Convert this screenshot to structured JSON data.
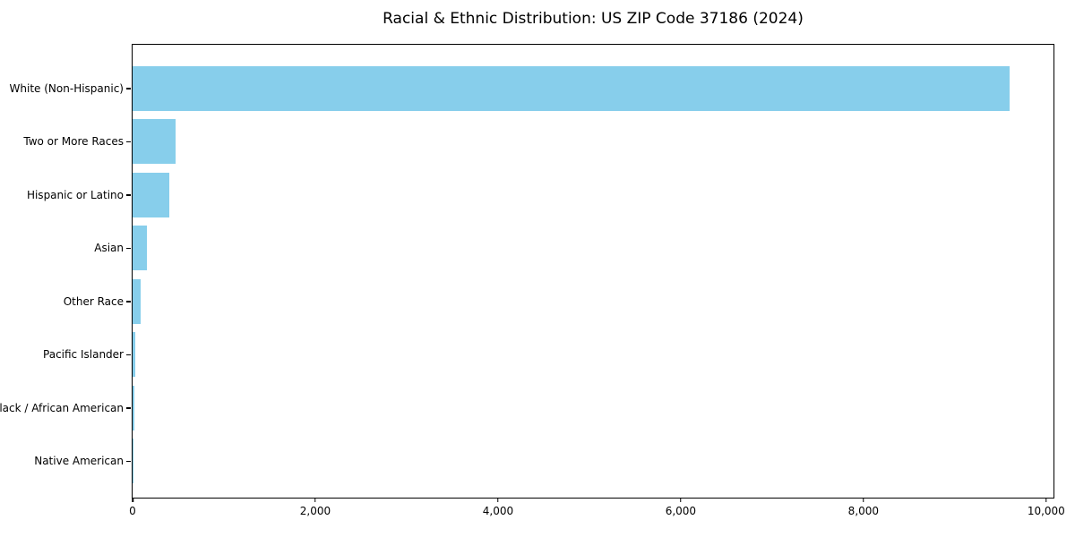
{
  "chart_data": {
    "type": "bar",
    "orientation": "horizontal",
    "title": "Racial & Ethnic Distribution: US ZIP Code 37186 (2024)",
    "categories": [
      "White (Non-Hispanic)",
      "Two or More Races",
      "Hispanic or Latino",
      "Asian",
      "Other Race",
      "Pacific Islander",
      "Black / African American",
      "Native American"
    ],
    "values": [
      9595,
      470,
      405,
      155,
      90,
      30,
      15,
      2
    ],
    "bar_color": "#87CEEB",
    "xlabel": "",
    "ylabel": "",
    "xlim": [
      0,
      10080
    ],
    "x_ticks": [
      0,
      2000,
      4000,
      6000,
      8000,
      10000
    ],
    "x_tick_labels": [
      "0",
      "2,000",
      "4,000",
      "6,000",
      "8,000",
      "10,000"
    ],
    "grid": false,
    "legend": null
  }
}
